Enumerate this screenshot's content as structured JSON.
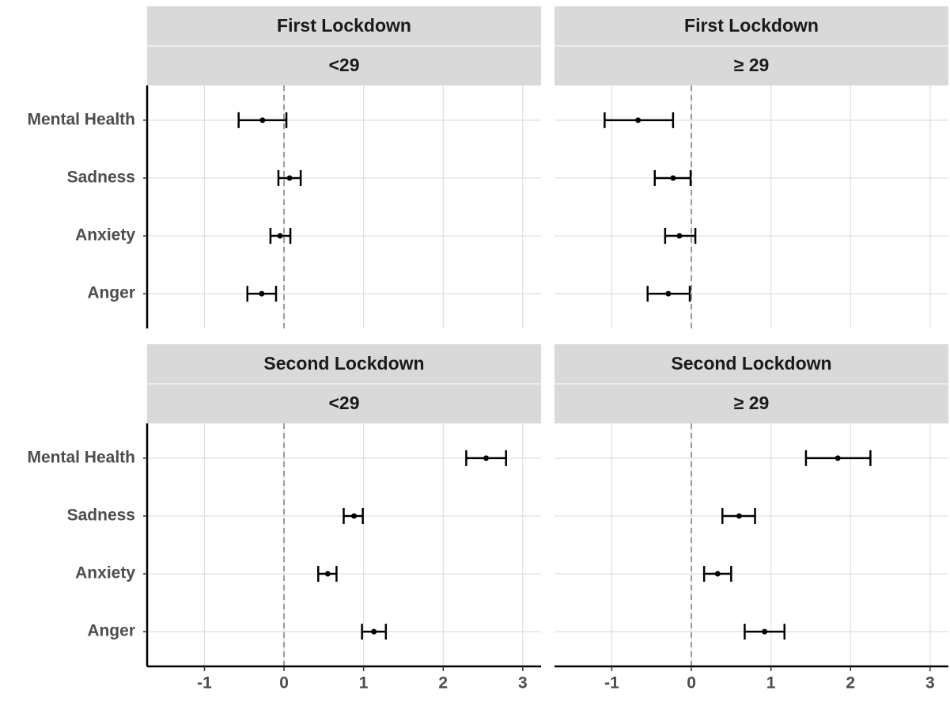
{
  "chart_data": {
    "type": "forest",
    "categories": [
      "Mental Health",
      "Sadness",
      "Anxiety",
      "Anger"
    ],
    "xlim": [
      -1.72,
      3.23
    ],
    "xticks": [
      -1,
      0,
      1,
      2,
      3
    ],
    "ref_line": 0,
    "grid": true,
    "color": "#000000",
    "panels": [
      {
        "strip": [
          "First Lockdown",
          "<29"
        ],
        "values": [
          -0.27,
          0.07,
          -0.05,
          -0.28
        ],
        "lower": [
          -0.57,
          -0.07,
          -0.17,
          -0.46
        ],
        "upper": [
          0.03,
          0.21,
          0.08,
          -0.1
        ]
      },
      {
        "strip": [
          "First Lockdown",
          "≥ 29"
        ],
        "values": [
          -0.67,
          -0.23,
          -0.15,
          -0.29
        ],
        "lower": [
          -1.09,
          -0.46,
          -0.33,
          -0.55
        ],
        "upper": [
          -0.23,
          -0.01,
          0.05,
          -0.02
        ]
      },
      {
        "strip": [
          "Second Lockdown",
          "<29"
        ],
        "values": [
          2.54,
          0.88,
          0.55,
          1.13
        ],
        "lower": [
          2.29,
          0.75,
          0.43,
          0.98
        ],
        "upper": [
          2.79,
          0.99,
          0.66,
          1.28
        ]
      },
      {
        "strip": [
          "Second Lockdown",
          "≥ 29"
        ],
        "values": [
          1.84,
          0.6,
          0.33,
          0.92
        ],
        "lower": [
          1.44,
          0.39,
          0.16,
          0.67
        ],
        "upper": [
          2.25,
          0.8,
          0.5,
          1.17
        ]
      }
    ]
  }
}
